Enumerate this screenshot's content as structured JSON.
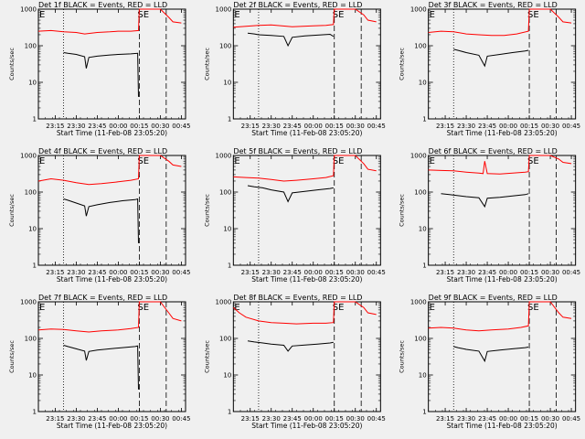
{
  "colors": {
    "background": "#f0f0f0",
    "events": "#000000",
    "lld": "#ff0000",
    "axis": "#000000"
  },
  "chart_data": [
    {
      "type": "line",
      "detector": "Det 1f",
      "title": "Det 1f BLACK = Events, RED = LLD",
      "xlabel": "Start Time (11-Feb-08 23:05:20)",
      "ylabel": "Counts/sec",
      "xlim": [
        23.05,
        24.8
      ],
      "ylim": [
        1,
        1000
      ],
      "yscale": "log",
      "x_ticks": [
        23.25,
        23.5,
        23.75,
        24.0,
        24.25,
        24.5,
        24.75
      ],
      "x_tick_labels": [
        "23:15",
        "23:30",
        "23:45",
        "00:00",
        "00:15",
        "00:30",
        "00:45"
      ],
      "y_ticks": [
        1,
        10,
        100,
        1000
      ],
      "y_tick_labels": [
        "1",
        "10",
        "100",
        "1000"
      ],
      "annotations": [
        "E",
        "SE"
      ],
      "dotted_lines_x": [
        23.35
      ],
      "dashed_lines_x": [
        24.25,
        24.57
      ],
      "series": [
        {
          "name": "LLD",
          "color": "#ff0000",
          "x": [
            23.05,
            23.2,
            23.35,
            23.5,
            23.6,
            23.75,
            23.9,
            24.0,
            24.15,
            24.24,
            24.25,
            24.27,
            24.5,
            24.6,
            24.65,
            24.75
          ],
          "y": [
            250,
            260,
            240,
            230,
            210,
            230,
            240,
            250,
            250,
            260,
            1000,
            1000,
            1000,
            600,
            450,
            420
          ]
        },
        {
          "name": "Events",
          "color": "#000000",
          "x": [
            23.35,
            23.4,
            23.5,
            23.6,
            23.62,
            23.65,
            23.75,
            23.9,
            24.0,
            24.15,
            24.23,
            24.24
          ],
          "y": [
            65,
            62,
            58,
            50,
            24,
            48,
            52,
            56,
            58,
            60,
            62,
            4
          ]
        }
      ]
    },
    {
      "type": "line",
      "detector": "Det 2f",
      "title": "Det 2f BLACK = Events, RED = LLD",
      "xlabel": "Start Time (11-Feb-08 23:05:20)",
      "ylabel": "Counts/sec",
      "xlim": [
        23.05,
        24.8
      ],
      "ylim": [
        1,
        1000
      ],
      "yscale": "log",
      "x_ticks": [
        23.25,
        23.5,
        23.75,
        24.0,
        24.25,
        24.5,
        24.75
      ],
      "x_tick_labels": [
        "23:15",
        "23:30",
        "23:45",
        "00:00",
        "00:15",
        "00:30",
        "00:45"
      ],
      "y_ticks": [
        1,
        10,
        100,
        1000
      ],
      "y_tick_labels": [
        "1",
        "10",
        "100",
        "1000"
      ],
      "annotations": [
        "E",
        "SE"
      ],
      "dotted_lines_x": [
        23.35
      ],
      "dashed_lines_x": [
        24.25,
        24.57
      ],
      "series": [
        {
          "name": "LLD",
          "color": "#ff0000",
          "x": [
            23.05,
            23.2,
            23.35,
            23.5,
            23.75,
            24.0,
            24.15,
            24.24,
            24.25,
            24.27,
            24.5,
            24.6,
            24.65,
            24.75
          ],
          "y": [
            320,
            340,
            360,
            370,
            330,
            350,
            360,
            380,
            1000,
            1000,
            1000,
            700,
            500,
            450
          ]
        },
        {
          "name": "Events",
          "color": "#000000",
          "x": [
            23.22,
            23.3,
            23.35,
            23.5,
            23.65,
            23.7,
            23.75,
            23.9,
            24.05,
            24.2,
            24.24
          ],
          "y": [
            220,
            210,
            200,
            190,
            180,
            100,
            170,
            185,
            195,
            205,
            180
          ]
        }
      ]
    },
    {
      "type": "line",
      "detector": "Det 3f",
      "title": "Det 3f BLACK = Events, RED = LLD",
      "xlabel": "Start Time (11-Feb-08 23:05:20)",
      "ylabel": "Counts/sec",
      "xlim": [
        23.05,
        24.8
      ],
      "ylim": [
        1,
        1000
      ],
      "yscale": "log",
      "x_ticks": [
        23.25,
        23.5,
        23.75,
        24.0,
        24.25,
        24.5,
        24.75
      ],
      "x_tick_labels": [
        "23:15",
        "23:30",
        "23:45",
        "00:00",
        "00:15",
        "00:30",
        "00:45"
      ],
      "y_ticks": [
        1,
        10,
        100,
        1000
      ],
      "y_tick_labels": [
        "1",
        "10",
        "100",
        "1000"
      ],
      "annotations": [
        "E",
        "SE"
      ],
      "dotted_lines_x": [
        23.35
      ],
      "dashed_lines_x": [
        24.25,
        24.57
      ],
      "series": [
        {
          "name": "LLD",
          "color": "#ff0000",
          "x": [
            23.05,
            23.2,
            23.35,
            23.5,
            23.65,
            23.8,
            23.95,
            24.1,
            24.24,
            24.25,
            24.27,
            24.5,
            24.6,
            24.65,
            24.75
          ],
          "y": [
            230,
            250,
            240,
            210,
            200,
            190,
            190,
            210,
            250,
            1000,
            1000,
            1000,
            600,
            450,
            420
          ]
        },
        {
          "name": "Events",
          "color": "#000000",
          "x": [
            23.35,
            23.4,
            23.5,
            23.65,
            23.72,
            23.75,
            23.9,
            24.05,
            24.2,
            24.24
          ],
          "y": [
            80,
            75,
            65,
            55,
            28,
            52,
            58,
            65,
            72,
            75
          ]
        }
      ]
    },
    {
      "type": "line",
      "detector": "Det 4f",
      "title": "Det 4f BLACK = Events, RED = LLD",
      "xlabel": "Start Time (11-Feb-08 23:05:20)",
      "ylabel": "Counts/sec",
      "xlim": [
        23.05,
        24.8
      ],
      "ylim": [
        1,
        1000
      ],
      "yscale": "log",
      "x_ticks": [
        23.25,
        23.5,
        23.75,
        24.0,
        24.25,
        24.5,
        24.75
      ],
      "x_tick_labels": [
        "23:15",
        "23:30",
        "23:45",
        "00:00",
        "00:15",
        "00:30",
        "00:45"
      ],
      "y_ticks": [
        1,
        10,
        100,
        1000
      ],
      "y_tick_labels": [
        "1",
        "10",
        "100",
        "1000"
      ],
      "annotations": [
        "E",
        "SE"
      ],
      "dotted_lines_x": [
        23.35
      ],
      "dashed_lines_x": [
        24.25,
        24.57
      ],
      "series": [
        {
          "name": "LLD",
          "color": "#ff0000",
          "x": [
            23.05,
            23.2,
            23.35,
            23.5,
            23.65,
            23.8,
            24.0,
            24.15,
            24.24,
            24.25,
            24.27,
            24.5,
            24.6,
            24.65,
            24.75
          ],
          "y": [
            200,
            230,
            210,
            180,
            160,
            170,
            190,
            210,
            230,
            1000,
            1000,
            1000,
            700,
            550,
            500
          ]
        },
        {
          "name": "Events",
          "color": "#000000",
          "x": [
            23.35,
            23.4,
            23.5,
            23.6,
            23.62,
            23.65,
            23.75,
            23.9,
            24.05,
            24.2,
            24.23,
            24.24
          ],
          "y": [
            65,
            60,
            50,
            42,
            22,
            40,
            45,
            52,
            58,
            62,
            65,
            4
          ]
        }
      ]
    },
    {
      "type": "line",
      "detector": "Det 5f",
      "title": "Det 5f BLACK = Events, RED = LLD",
      "xlabel": "Start Time (11-Feb-08 23:05:20)",
      "ylabel": "Counts/sec",
      "xlim": [
        23.05,
        24.8
      ],
      "ylim": [
        1,
        1000
      ],
      "yscale": "log",
      "x_ticks": [
        23.25,
        23.5,
        23.75,
        24.0,
        24.25,
        24.5,
        24.75
      ],
      "x_tick_labels": [
        "23:15",
        "23:30",
        "23:45",
        "00:00",
        "00:15",
        "00:30",
        "00:45"
      ],
      "y_ticks": [
        1,
        10,
        100,
        1000
      ],
      "y_tick_labels": [
        "1",
        "10",
        "100",
        "1000"
      ],
      "annotations": [
        "E",
        "SE"
      ],
      "dotted_lines_x": [
        23.35
      ],
      "dashed_lines_x": [
        24.25,
        24.57
      ],
      "series": [
        {
          "name": "LLD",
          "color": "#ff0000",
          "x": [
            23.05,
            23.2,
            23.35,
            23.5,
            23.65,
            23.8,
            24.0,
            24.15,
            24.24,
            24.25,
            24.27,
            24.5,
            24.6,
            24.65,
            24.75
          ],
          "y": [
            260,
            250,
            240,
            220,
            200,
            210,
            230,
            250,
            280,
            1000,
            1000,
            1000,
            600,
            420,
            380
          ]
        },
        {
          "name": "Events",
          "color": "#000000",
          "x": [
            23.22,
            23.3,
            23.4,
            23.5,
            23.65,
            23.7,
            23.75,
            23.9,
            24.05,
            24.2,
            24.24
          ],
          "y": [
            150,
            140,
            130,
            115,
            100,
            55,
            95,
            105,
            115,
            125,
            130
          ]
        }
      ]
    },
    {
      "type": "line",
      "detector": "Det 6f",
      "title": "Det 6f BLACK = Events, RED = LLD",
      "xlabel": "Start Time (11-Feb-08 23:05:20)",
      "ylabel": "Counts/sec",
      "xlim": [
        23.05,
        24.8
      ],
      "ylim": [
        1,
        1000
      ],
      "yscale": "log",
      "x_ticks": [
        23.25,
        23.5,
        23.75,
        24.0,
        24.25,
        24.5,
        24.75
      ],
      "x_tick_labels": [
        "23:15",
        "23:30",
        "23:45",
        "00:00",
        "00:15",
        "00:30",
        "00:45"
      ],
      "y_ticks": [
        1,
        10,
        100,
        1000
      ],
      "y_tick_labels": [
        "1",
        "10",
        "100",
        "1000"
      ],
      "annotations": [
        "E",
        "SE"
      ],
      "dotted_lines_x": [
        23.35
      ],
      "dashed_lines_x": [
        24.25,
        24.57
      ],
      "series": [
        {
          "name": "LLD",
          "color": "#ff0000",
          "x": [
            23.05,
            23.2,
            23.35,
            23.5,
            23.65,
            23.7,
            23.72,
            23.75,
            23.9,
            24.05,
            24.2,
            24.24,
            24.25,
            24.27,
            24.5,
            24.6,
            24.65,
            24.75
          ],
          "y": [
            400,
            390,
            380,
            350,
            330,
            320,
            700,
            320,
            310,
            330,
            350,
            360,
            1000,
            1000,
            1000,
            800,
            650,
            600
          ]
        },
        {
          "name": "Events",
          "color": "#000000",
          "x": [
            23.2,
            23.3,
            23.4,
            23.5,
            23.65,
            23.72,
            23.75,
            23.9,
            24.05,
            24.2,
            24.24
          ],
          "y": [
            90,
            85,
            80,
            75,
            70,
            40,
            68,
            72,
            78,
            85,
            90
          ]
        }
      ]
    },
    {
      "type": "line",
      "detector": "Det 7f",
      "title": "Det 7f BLACK = Events, RED = LLD",
      "xlabel": "Start Time (11-Feb-08 23:05:20)",
      "ylabel": "Counts/sec",
      "xlim": [
        23.05,
        24.8
      ],
      "ylim": [
        1,
        1000
      ],
      "yscale": "log",
      "x_ticks": [
        23.25,
        23.5,
        23.75,
        24.0,
        24.25,
        24.5,
        24.75
      ],
      "x_tick_labels": [
        "23:15",
        "23:30",
        "23:45",
        "00:00",
        "00:15",
        "00:30",
        "00:45"
      ],
      "y_ticks": [
        1,
        10,
        100,
        1000
      ],
      "y_tick_labels": [
        "1",
        "10",
        "100",
        "1000"
      ],
      "annotations": [
        "E",
        "SE"
      ],
      "dotted_lines_x": [
        23.35
      ],
      "dashed_lines_x": [
        24.25,
        24.57
      ],
      "series": [
        {
          "name": "LLD",
          "color": "#ff0000",
          "x": [
            23.05,
            23.2,
            23.35,
            23.5,
            23.65,
            23.8,
            24.0,
            24.15,
            24.24,
            24.25,
            24.27,
            24.5,
            24.6,
            24.65,
            24.75
          ],
          "y": [
            170,
            180,
            175,
            160,
            150,
            160,
            170,
            185,
            200,
            1000,
            1000,
            1000,
            500,
            350,
            300
          ]
        },
        {
          "name": "Events",
          "color": "#000000",
          "x": [
            23.35,
            23.4,
            23.5,
            23.6,
            23.62,
            23.65,
            23.75,
            23.9,
            24.05,
            24.2,
            24.23,
            24.24
          ],
          "y": [
            65,
            60,
            52,
            45,
            25,
            44,
            48,
            52,
            56,
            60,
            62,
            4
          ]
        }
      ]
    },
    {
      "type": "line",
      "detector": "Det 8f",
      "title": "Det 8f BLACK = Events, RED = LLD",
      "xlabel": "Start Time (11-Feb-08 23:05:20)",
      "ylabel": "Counts/sec",
      "xlim": [
        23.05,
        24.8
      ],
      "ylim": [
        1,
        1000
      ],
      "yscale": "log",
      "x_ticks": [
        23.25,
        23.5,
        23.75,
        24.0,
        24.25,
        24.5,
        24.75
      ],
      "x_tick_labels": [
        "23:15",
        "23:30",
        "23:45",
        "00:00",
        "00:15",
        "00:30",
        "00:45"
      ],
      "y_ticks": [
        1,
        10,
        100,
        1000
      ],
      "y_tick_labels": [
        "1",
        "10",
        "100",
        "1000"
      ],
      "annotations": [
        "E",
        "SE"
      ],
      "dotted_lines_x": [
        23.35
      ],
      "dashed_lines_x": [
        24.25,
        24.57
      ],
      "series": [
        {
          "name": "LLD",
          "color": "#ff0000",
          "x": [
            23.05,
            23.12,
            23.2,
            23.35,
            23.5,
            23.65,
            23.8,
            24.0,
            24.15,
            24.24,
            24.25,
            24.27,
            24.5,
            24.6,
            24.65,
            24.75
          ],
          "y": [
            700,
            500,
            380,
            300,
            270,
            260,
            250,
            260,
            260,
            270,
            1000,
            1000,
            1000,
            700,
            500,
            450
          ]
        },
        {
          "name": "Events",
          "color": "#000000",
          "x": [
            23.22,
            23.3,
            23.4,
            23.5,
            23.65,
            23.7,
            23.75,
            23.9,
            24.05,
            24.2,
            24.24
          ],
          "y": [
            85,
            80,
            75,
            70,
            65,
            45,
            62,
            66,
            70,
            75,
            78
          ]
        }
      ]
    },
    {
      "type": "line",
      "detector": "Det 9f",
      "title": "Det 9f BLACK = Events, RED = LLD",
      "xlabel": "Start Time (11-Feb-08 23:05:20)",
      "ylabel": "Counts/sec",
      "xlim": [
        23.05,
        24.8
      ],
      "ylim": [
        1,
        1000
      ],
      "yscale": "log",
      "x_ticks": [
        23.25,
        23.5,
        23.75,
        24.0,
        24.25,
        24.5,
        24.75
      ],
      "x_tick_labels": [
        "23:15",
        "23:30",
        "23:45",
        "00:00",
        "00:15",
        "00:30",
        "00:45"
      ],
      "y_ticks": [
        1,
        10,
        100,
        1000
      ],
      "y_tick_labels": [
        "1",
        "10",
        "100",
        "1000"
      ],
      "annotations": [
        "E",
        "SE"
      ],
      "dotted_lines_x": [
        23.35
      ],
      "dashed_lines_x": [
        24.25,
        24.57
      ],
      "series": [
        {
          "name": "LLD",
          "color": "#ff0000",
          "x": [
            23.05,
            23.2,
            23.35,
            23.5,
            23.65,
            23.8,
            24.0,
            24.15,
            24.24,
            24.25,
            24.27,
            24.5,
            24.6,
            24.65,
            24.75
          ],
          "y": [
            190,
            200,
            190,
            170,
            160,
            170,
            180,
            200,
            220,
            1000,
            1000,
            1000,
            500,
            380,
            350
          ]
        },
        {
          "name": "Events",
          "color": "#000000",
          "x": [
            23.35,
            23.4,
            23.5,
            23.65,
            23.72,
            23.75,
            23.9,
            24.05,
            24.2,
            24.24
          ],
          "y": [
            60,
            56,
            50,
            45,
            24,
            44,
            48,
            52,
            56,
            58
          ]
        }
      ]
    }
  ]
}
